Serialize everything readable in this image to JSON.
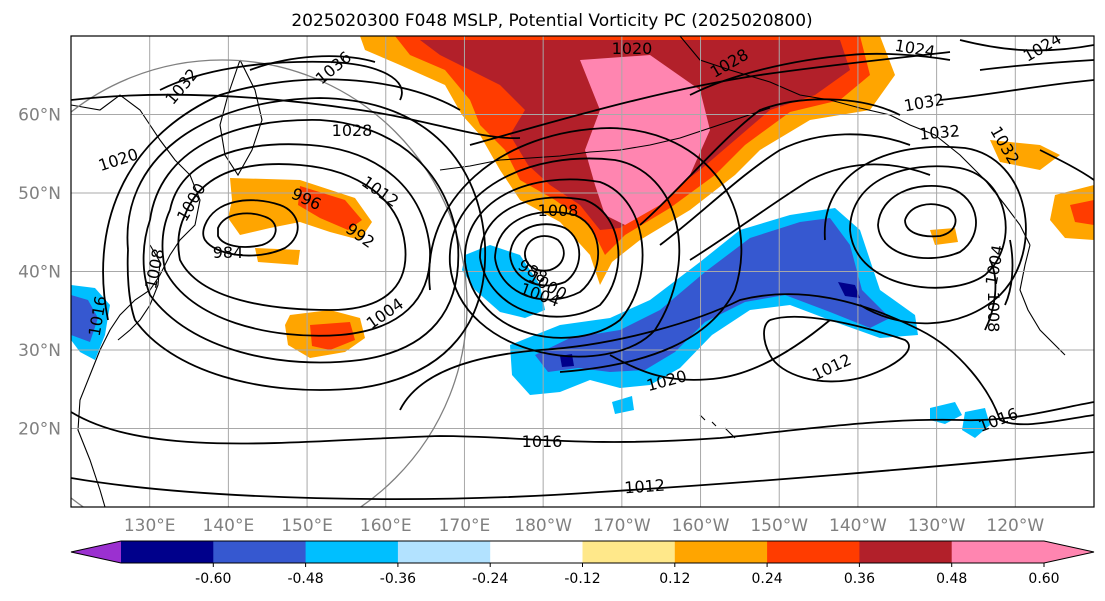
{
  "chart_data": {
    "type": "contour-map",
    "title": "2025020300 F048 MSLP, Potential Vorticity PC (2025020800)",
    "lat_ticks": [
      "60°N",
      "50°N",
      "40°N",
      "30°N",
      "20°N"
    ],
    "lon_ticks": [
      "130°E",
      "140°E",
      "150°E",
      "160°E",
      "170°E",
      "180°W",
      "170°W",
      "160°W",
      "150°W",
      "140°W",
      "130°W",
      "120°W"
    ],
    "lat_range": [
      10,
      70
    ],
    "lon_range": [
      120,
      250
    ],
    "grid": true,
    "colorbar": {
      "orientation": "horizontal",
      "extend": "both",
      "tick_labels": [
        "-0.60",
        "-0.48",
        "-0.36",
        "-0.24",
        "-0.12",
        "0.12",
        "0.24",
        "0.36",
        "0.48",
        "0.60"
      ],
      "colors": [
        "#9b30d0",
        "#00008b",
        "#3658d0",
        "#00bfff",
        "#b2e2ff",
        "#ffffff",
        "#ffe88a",
        "#ffa500",
        "#ff3c00",
        "#b2202a",
        "#ff85b0",
        "#ff85b0"
      ]
    },
    "isobar_labels": [
      "1036",
      "1032",
      "1028",
      "1024",
      "1020",
      "1016",
      "1012",
      "1008",
      "1004",
      "1000",
      "996",
      "992",
      "988",
      "984"
    ]
  }
}
